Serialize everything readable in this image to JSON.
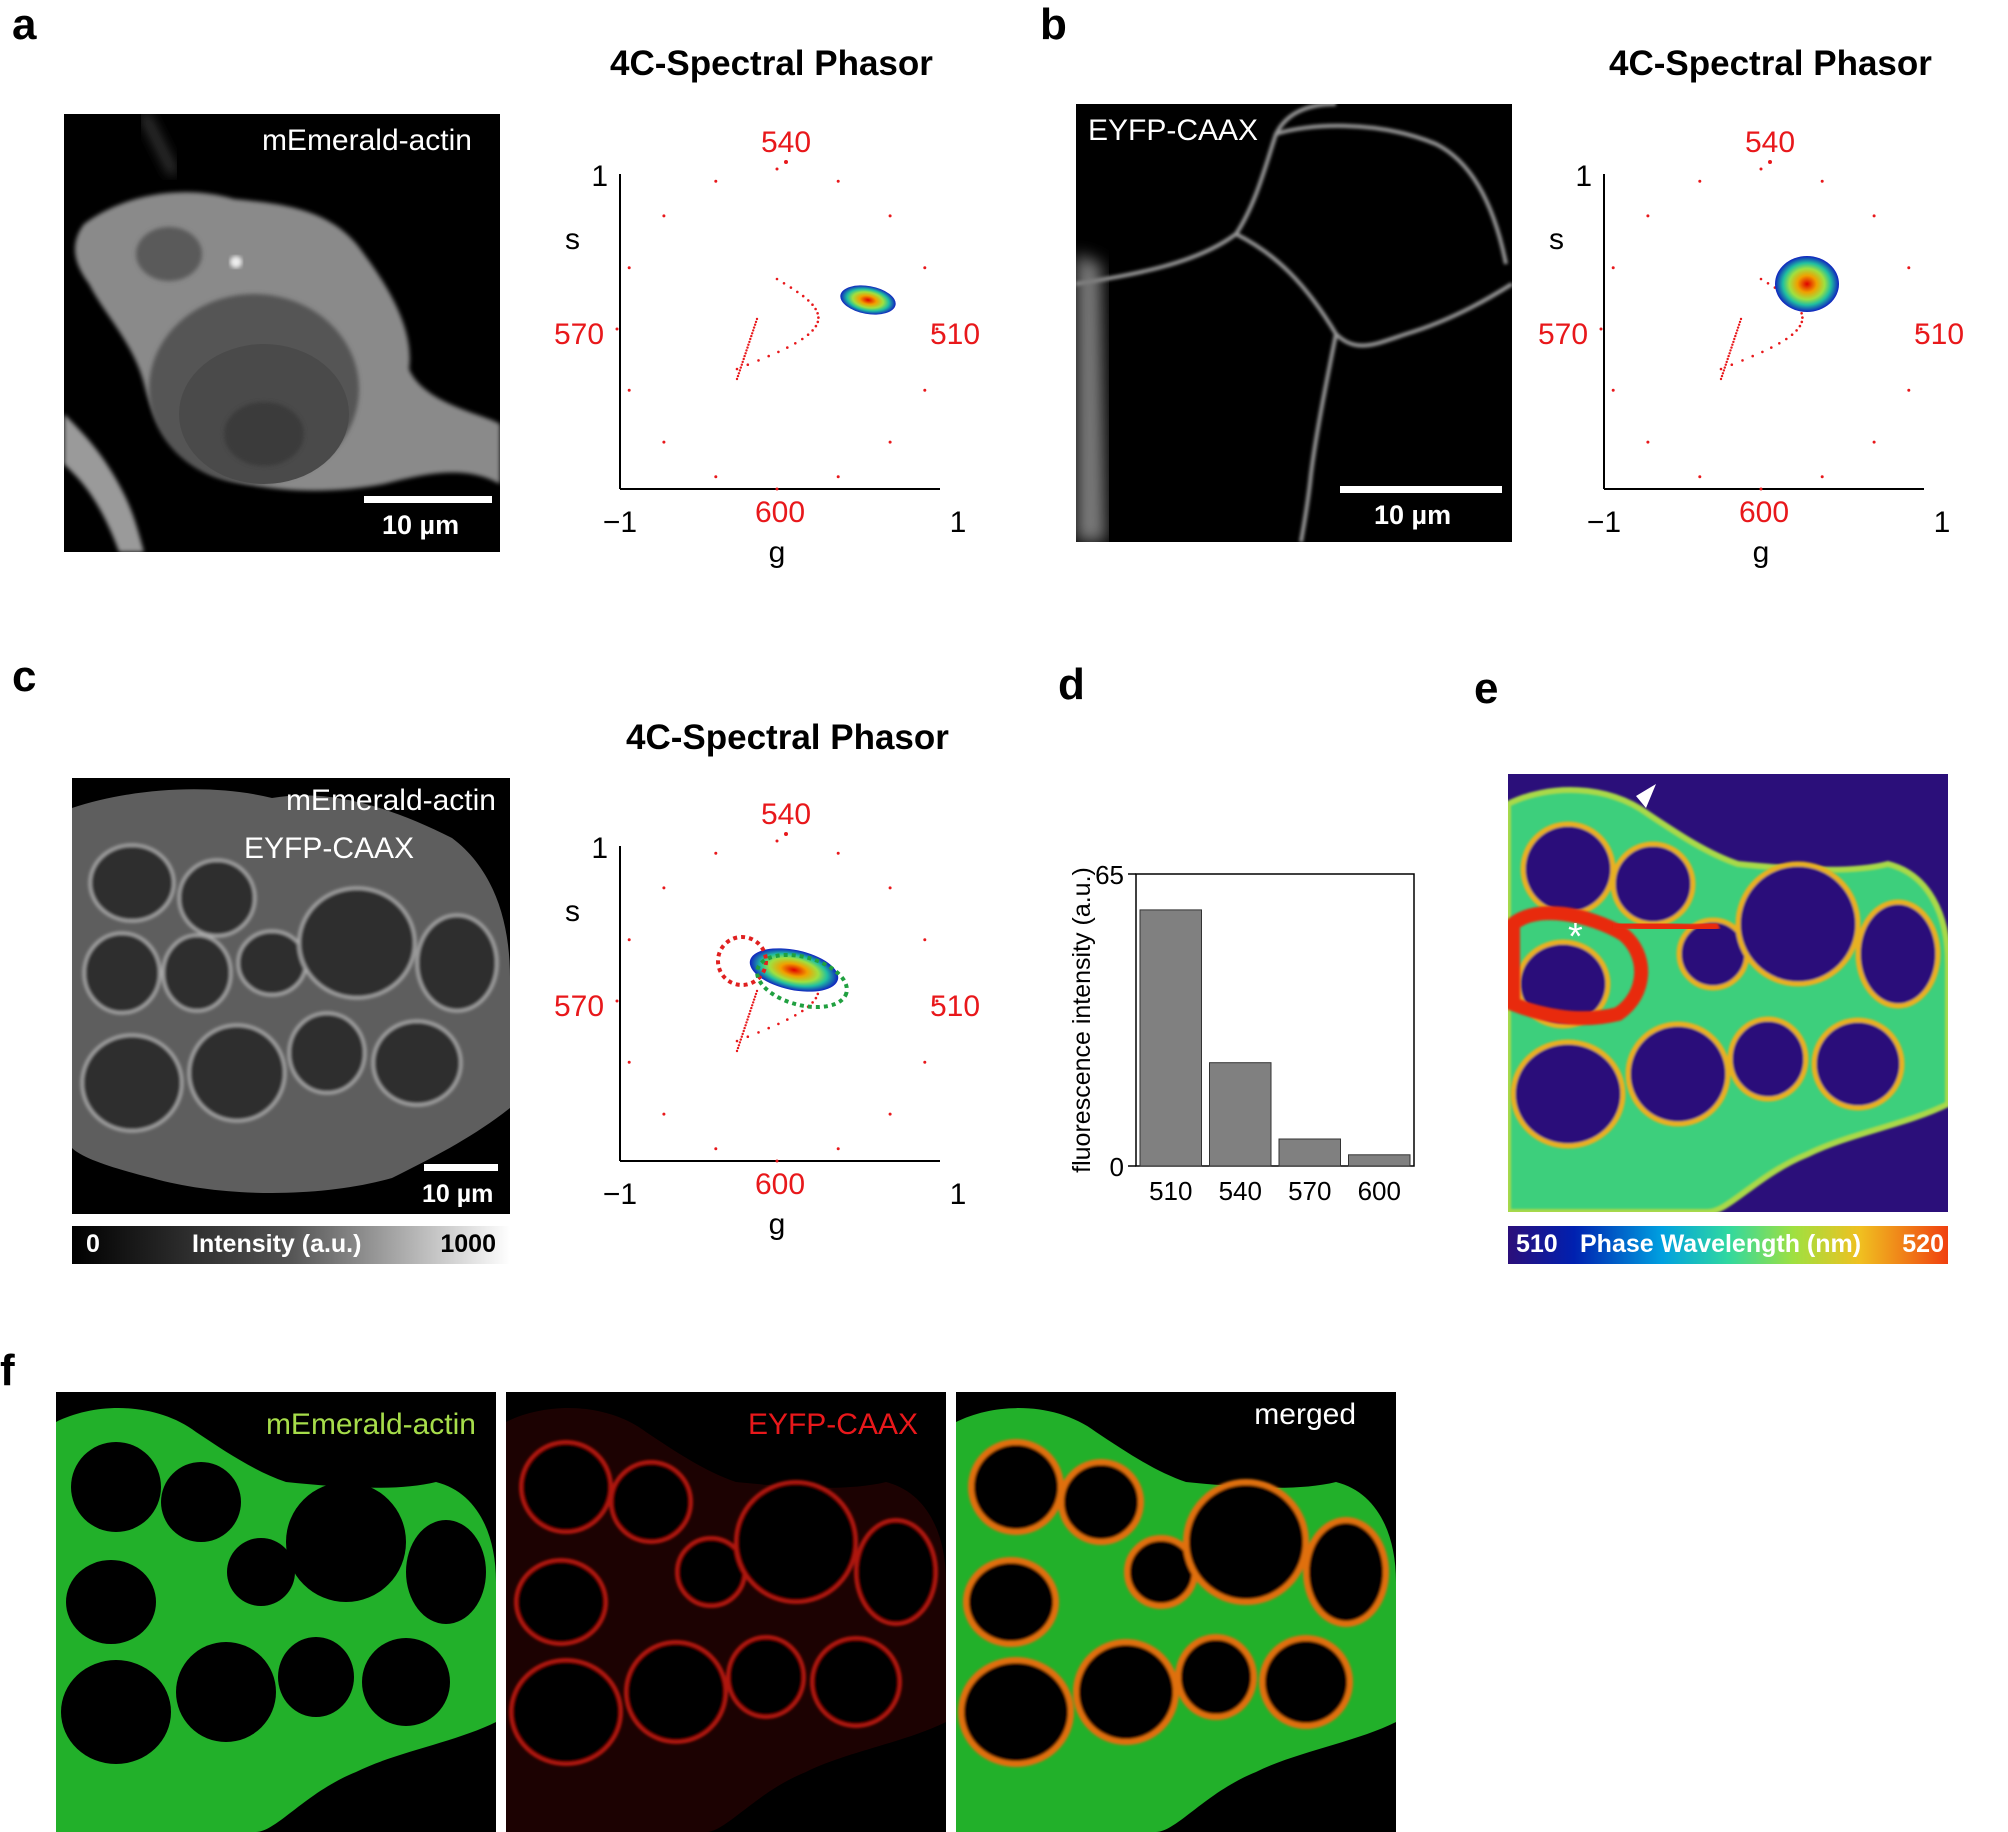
{
  "panels": {
    "a": {
      "letter": "a",
      "title": "4C-Spectral Phasor",
      "micro_label": "mEmerald-actin",
      "scale": "10 µm"
    },
    "b": {
      "letter": "b",
      "title": "4C-Spectral Phasor",
      "micro_label": "EYFP-CAAX",
      "scale": "10 µm"
    },
    "c": {
      "letter": "c",
      "title": "4C-Spectral Phasor",
      "micro_label_1": "mEmerald-actin",
      "micro_label_2": "EYFP-CAAX",
      "scale": "10 µm",
      "colorbar": {
        "min": "0",
        "label": "Intensity (a.u.)",
        "max": "1000"
      }
    },
    "d": {
      "letter": "d"
    },
    "e": {
      "letter": "e",
      "asterisk": "*",
      "colorbar": {
        "min": "510",
        "label": "Phase Wavelength (nm)",
        "max": "520"
      }
    },
    "f": {
      "letter": "f",
      "labels": [
        "mEmerald-actin",
        "EYFP-CAAX",
        "merged"
      ]
    }
  },
  "phasor_axes": {
    "x_min": "−1",
    "x_max": "1",
    "y_max": "1",
    "x_label": "g",
    "y_label": "s",
    "wavelengths": {
      "top": "540",
      "right": "510",
      "left": "570",
      "bottom": "600"
    }
  },
  "colors": {
    "wavelength_red": "#e8181b",
    "bar_gray": "#808080",
    "green_channel": "#1fc21f",
    "red_channel": "#d21a12",
    "phase_bg": "#2b0f7a"
  },
  "chart_data": {
    "type": "bar",
    "categories": [
      "510",
      "540",
      "570",
      "600"
    ],
    "values": [
      57,
      23,
      6,
      2.5
    ],
    "ylabel": "fluorescence intensity (a.u.)",
    "ylim": [
      0,
      65
    ],
    "yticks": [
      "0",
      "65"
    ]
  }
}
